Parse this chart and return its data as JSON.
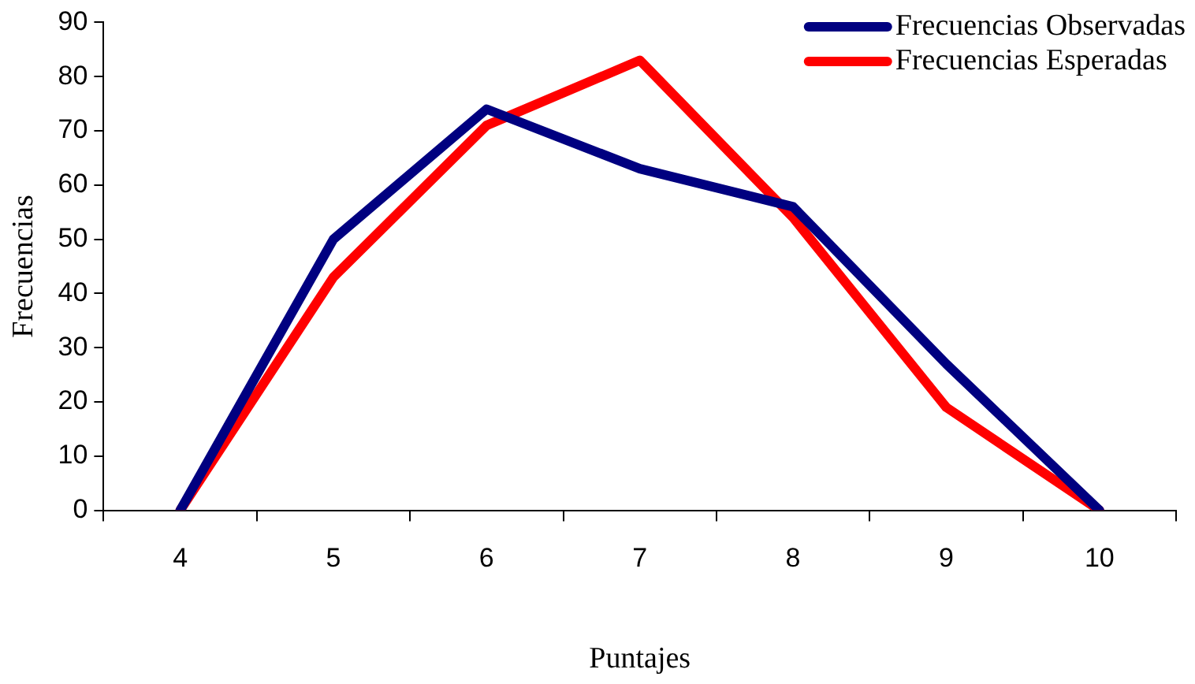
{
  "chart_data": {
    "type": "line",
    "xlabel": "Puntajes",
    "ylabel": "Frecuencias",
    "categories": [
      "4",
      "5",
      "6",
      "7",
      "8",
      "9",
      "10"
    ],
    "series": [
      {
        "name": "Frecuencias Observadas",
        "color": "#000080",
        "values": [
          0,
          50,
          74,
          63,
          56,
          27,
          0
        ]
      },
      {
        "name": "Frecuencias Esperadas",
        "color": "#ff0000",
        "values": [
          0,
          43,
          71,
          83,
          54,
          19,
          0
        ]
      }
    ],
    "ylim": [
      0,
      90
    ],
    "yticks": [
      0,
      10,
      20,
      30,
      40,
      50,
      60,
      70,
      80,
      90
    ],
    "grid": false,
    "legend": "top right",
    "marker": "none",
    "line_style": "solid"
  }
}
